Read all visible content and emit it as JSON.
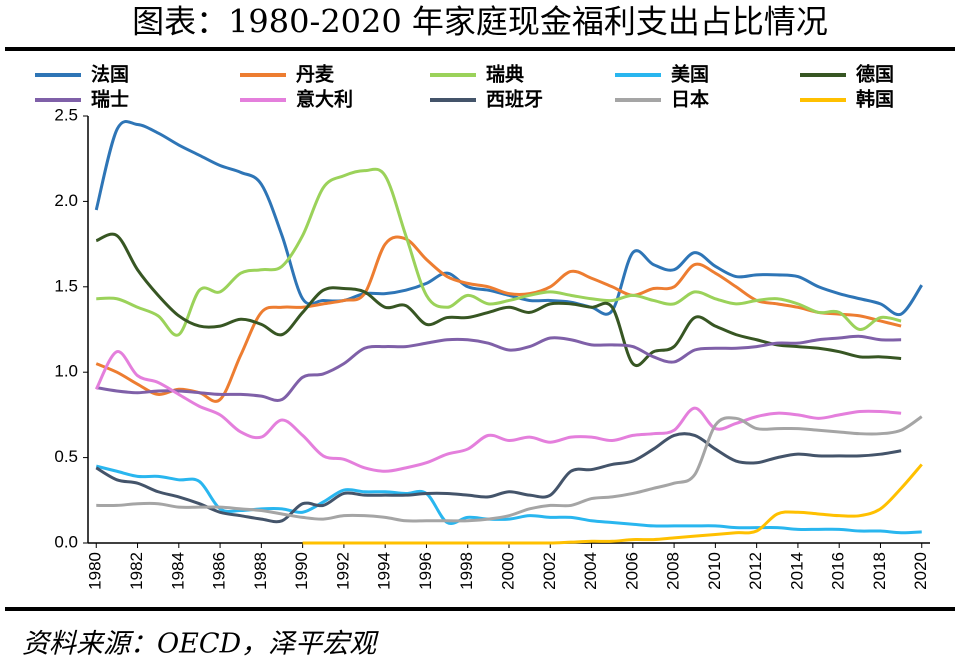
{
  "chart_data": {
    "type": "line",
    "title": "图表：1980-2020 年家庭现金福利支出占比情况",
    "source": "资料来源：OECD，泽平宏观",
    "x": [
      1980,
      1981,
      1982,
      1983,
      1984,
      1985,
      1986,
      1987,
      1988,
      1989,
      1990,
      1991,
      1992,
      1993,
      1994,
      1995,
      1996,
      1997,
      1998,
      1999,
      2000,
      2001,
      2002,
      2003,
      2004,
      2005,
      2006,
      2007,
      2008,
      2009,
      2010,
      2011,
      2012,
      2013,
      2014,
      2015,
      2016,
      2017,
      2018,
      2019,
      2020
    ],
    "xlim": [
      1979.6,
      2020.4
    ],
    "xticks": [
      1980,
      1982,
      1984,
      1986,
      1988,
      1990,
      1992,
      1994,
      1996,
      1998,
      2000,
      2002,
      2004,
      2006,
      2008,
      2010,
      2012,
      2014,
      2016,
      2018,
      2020
    ],
    "ylim": [
      0,
      2.5
    ],
    "yticks": [
      {
        "value": 0,
        "label": "0.0"
      },
      {
        "value": 0.5,
        "label": "0.5"
      },
      {
        "value": 1,
        "label": "1.0"
      },
      {
        "value": 1.5,
        "label": "1.5"
      },
      {
        "value": 2,
        "label": "2.0"
      },
      {
        "value": 2.5,
        "label": "2.5"
      }
    ],
    "grid": false,
    "series": [
      {
        "name": "法国",
        "color": "#2e75b6",
        "values": [
          1.95,
          2.42,
          2.45,
          2.4,
          2.33,
          2.27,
          2.21,
          2.17,
          2.1,
          1.8,
          1.43,
          1.42,
          1.42,
          1.46,
          1.46,
          1.48,
          1.52,
          1.58,
          1.5,
          1.48,
          1.45,
          1.42,
          1.42,
          1.41,
          1.38,
          1.36,
          1.7,
          1.63,
          1.6,
          1.7,
          1.62,
          1.56,
          1.57,
          1.57,
          1.56,
          1.5,
          1.46,
          1.43,
          1.4,
          1.34,
          1.51
        ]
      },
      {
        "name": "丹麦",
        "color": "#ed7d31",
        "values": [
          1.05,
          1.0,
          0.93,
          0.87,
          0.9,
          0.88,
          0.84,
          1.1,
          1.35,
          1.38,
          1.38,
          1.4,
          1.42,
          1.46,
          1.75,
          1.78,
          1.66,
          1.56,
          1.52,
          1.5,
          1.46,
          1.46,
          1.5,
          1.59,
          1.55,
          1.5,
          1.45,
          1.49,
          1.5,
          1.63,
          1.58,
          1.5,
          1.42,
          1.4,
          1.38,
          1.35,
          1.34,
          1.33,
          1.3,
          1.27,
          null
        ]
      },
      {
        "name": "瑞典",
        "color": "#9bd25a",
        "values": [
          1.43,
          1.43,
          1.38,
          1.33,
          1.22,
          1.48,
          1.47,
          1.58,
          1.6,
          1.62,
          1.8,
          2.08,
          2.15,
          2.18,
          2.15,
          1.8,
          1.45,
          1.38,
          1.45,
          1.4,
          1.42,
          1.45,
          1.47,
          1.45,
          1.43,
          1.42,
          1.45,
          1.42,
          1.4,
          1.47,
          1.43,
          1.4,
          1.42,
          1.43,
          1.4,
          1.35,
          1.35,
          1.25,
          1.32,
          1.3,
          null
        ]
      },
      {
        "name": "美国",
        "color": "#29b6ef",
        "values": [
          0.45,
          0.42,
          0.39,
          0.39,
          0.37,
          0.36,
          0.2,
          0.19,
          0.2,
          0.2,
          0.18,
          0.24,
          0.31,
          0.3,
          0.3,
          0.29,
          0.29,
          0.12,
          0.15,
          0.14,
          0.14,
          0.16,
          0.15,
          0.15,
          0.13,
          0.12,
          0.11,
          0.1,
          0.1,
          0.1,
          0.1,
          0.09,
          0.09,
          0.09,
          0.08,
          0.08,
          0.08,
          0.07,
          0.07,
          0.06,
          0.065
        ]
      },
      {
        "name": "德国",
        "color": "#375623",
        "values": [
          1.77,
          1.8,
          1.6,
          1.45,
          1.33,
          1.27,
          1.27,
          1.31,
          1.28,
          1.22,
          1.35,
          1.48,
          1.49,
          1.47,
          1.38,
          1.39,
          1.28,
          1.32,
          1.32,
          1.35,
          1.38,
          1.35,
          1.4,
          1.4,
          1.38,
          1.38,
          1.05,
          1.12,
          1.15,
          1.32,
          1.27,
          1.22,
          1.19,
          1.16,
          1.15,
          1.14,
          1.12,
          1.09,
          1.09,
          1.08,
          null
        ]
      },
      {
        "name": "瑞士",
        "color": "#7f60a8",
        "values": [
          0.91,
          0.89,
          0.88,
          0.89,
          0.89,
          0.88,
          0.87,
          0.87,
          0.86,
          0.84,
          0.97,
          0.99,
          1.05,
          1.14,
          1.15,
          1.15,
          1.17,
          1.19,
          1.19,
          1.17,
          1.13,
          1.15,
          1.2,
          1.19,
          1.16,
          1.16,
          1.15,
          1.09,
          1.06,
          1.13,
          1.14,
          1.14,
          1.15,
          1.17,
          1.17,
          1.19,
          1.2,
          1.21,
          1.19,
          1.19,
          null
        ]
      },
      {
        "name": "意大利",
        "color": "#e47fdc",
        "values": [
          0.9,
          1.12,
          0.98,
          0.94,
          0.87,
          0.8,
          0.75,
          0.65,
          0.62,
          0.72,
          0.63,
          0.51,
          0.49,
          0.44,
          0.42,
          0.44,
          0.47,
          0.52,
          0.55,
          0.63,
          0.6,
          0.62,
          0.59,
          0.62,
          0.62,
          0.6,
          0.63,
          0.64,
          0.66,
          0.79,
          0.67,
          0.7,
          0.74,
          0.76,
          0.75,
          0.73,
          0.75,
          0.77,
          0.77,
          0.76,
          null
        ]
      },
      {
        "name": "西班牙",
        "color": "#44546a",
        "values": [
          0.44,
          0.37,
          0.35,
          0.3,
          0.27,
          0.23,
          0.18,
          0.16,
          0.14,
          0.13,
          0.23,
          0.22,
          0.29,
          0.28,
          0.28,
          0.28,
          0.29,
          0.29,
          0.28,
          0.27,
          0.3,
          0.28,
          0.28,
          0.42,
          0.43,
          0.46,
          0.48,
          0.55,
          0.63,
          0.63,
          0.55,
          0.48,
          0.47,
          0.5,
          0.52,
          0.51,
          0.51,
          0.51,
          0.52,
          0.54,
          null
        ]
      },
      {
        "name": "日本",
        "color": "#a5a5a5",
        "values": [
          0.22,
          0.22,
          0.23,
          0.23,
          0.21,
          0.21,
          0.21,
          0.2,
          0.19,
          0.17,
          0.15,
          0.14,
          0.16,
          0.16,
          0.15,
          0.13,
          0.13,
          0.13,
          0.13,
          0.14,
          0.16,
          0.2,
          0.22,
          0.22,
          0.26,
          0.27,
          0.29,
          0.32,
          0.35,
          0.4,
          0.69,
          0.73,
          0.67,
          0.67,
          0.67,
          0.66,
          0.65,
          0.64,
          0.64,
          0.66,
          0.74
        ]
      },
      {
        "name": "韩国",
        "color": "#ffc000",
        "values": [
          null,
          null,
          null,
          null,
          null,
          null,
          null,
          null,
          null,
          null,
          0,
          0,
          0,
          0,
          0,
          0,
          0,
          0,
          0,
          0,
          0,
          0,
          0,
          0.005,
          0.01,
          0.01,
          0.02,
          0.02,
          0.03,
          0.04,
          0.05,
          0.06,
          0.07,
          0.17,
          0.18,
          0.17,
          0.16,
          0.16,
          0.2,
          0.32,
          0.46
        ]
      }
    ]
  }
}
